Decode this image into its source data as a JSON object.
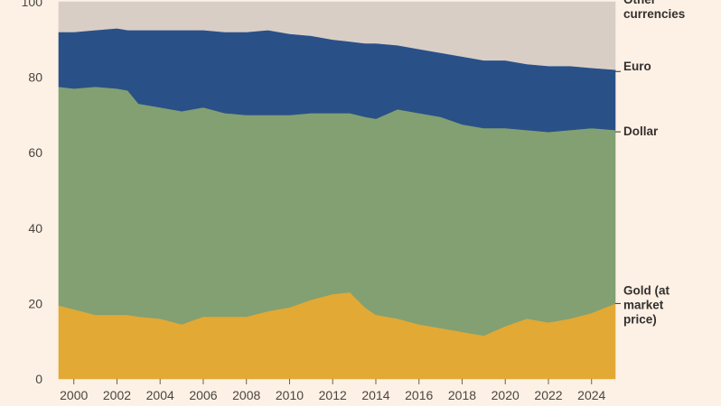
{
  "chart_data": {
    "type": "area",
    "stacked": true,
    "title": "",
    "xlabel": "",
    "ylabel": "",
    "ylim": [
      0,
      100
    ],
    "xlim": [
      1999.3,
      2025.1
    ],
    "yticks": [
      "0",
      "20",
      "40",
      "60",
      "80",
      "100"
    ],
    "xticks": [
      "2000",
      "2002",
      "2004",
      "2006",
      "2008",
      "2010",
      "2012",
      "2014",
      "2016",
      "2018",
      "2020",
      "2022",
      "2024"
    ],
    "grid": false,
    "legend": "labels at right end of each band",
    "x": [
      1999.3,
      2000,
      2001,
      2002,
      2002.5,
      2003,
      2004,
      2005,
      2006,
      2007,
      2008,
      2009,
      2010,
      2011,
      2012,
      2012.8,
      2013.5,
      2014,
      2015,
      2016,
      2017,
      2018,
      2019,
      2020,
      2021,
      2022,
      2023,
      2024,
      2025.1
    ],
    "series": [
      {
        "name": "Gold (at market price)",
        "color": "#e2a935",
        "cumulative": [
          19.5,
          18.5,
          17,
          17,
          17,
          16.5,
          16,
          14.5,
          16.5,
          16.5,
          16.5,
          18,
          19,
          21,
          22.5,
          23,
          19,
          17,
          16,
          14.5,
          13.5,
          12.5,
          11.5,
          14,
          16,
          15,
          16,
          17.5,
          20
        ]
      },
      {
        "name": "Dollar",
        "color": "#82a072",
        "cumulative": [
          77.5,
          77,
          77.5,
          77,
          76.5,
          73,
          72,
          71,
          72,
          70.5,
          70,
          70,
          70,
          70.5,
          70.5,
          70.5,
          69.5,
          69,
          71.5,
          70.5,
          69.5,
          67.5,
          66.5,
          66.5,
          66,
          65.5,
          66,
          66.5,
          66
        ]
      },
      {
        "name": "Euro",
        "color": "#2a5088",
        "cumulative": [
          92,
          92,
          92.5,
          93,
          92.5,
          92.5,
          92.5,
          92.5,
          92.5,
          92,
          92,
          92.5,
          91.5,
          91,
          90,
          89.5,
          89,
          89,
          88.5,
          87.5,
          86.5,
          85.5,
          84.5,
          84.5,
          83.5,
          83,
          83,
          82.5,
          82
        ]
      },
      {
        "name": "Other currencies",
        "color": "#d9cec6",
        "cumulative": [
          100,
          100,
          100,
          100,
          100,
          100,
          100,
          100,
          100,
          100,
          100,
          100,
          100,
          100,
          100,
          100,
          100,
          100,
          100,
          100,
          100,
          100,
          100,
          100,
          100,
          100,
          100,
          100,
          100
        ]
      }
    ],
    "end_labels": {
      "other": [
        "Other",
        "currencies"
      ],
      "euro": [
        "Euro"
      ],
      "dollar": [
        "Dollar"
      ],
      "gold": [
        "Gold (at",
        "market",
        "price)"
      ]
    }
  }
}
